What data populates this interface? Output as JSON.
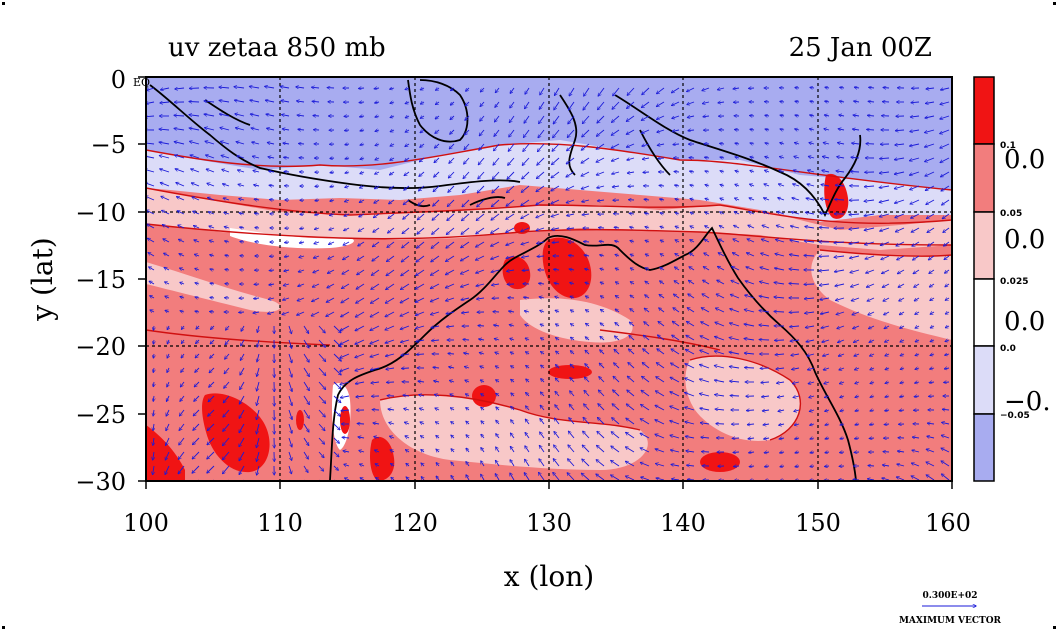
{
  "title": {
    "left": "uv zetaa 850 mb",
    "right": "25 Jan 00Z"
  },
  "axes": {
    "xlabel": "x (lon)",
    "ylabel": "y (lat)",
    "xticks": [
      "100",
      "110",
      "120",
      "130",
      "140",
      "150",
      "160"
    ],
    "yticks": [
      "0",
      "−5",
      "−10",
      "−15",
      "−20",
      "−25",
      "−30"
    ],
    "xlim": [
      100,
      160
    ],
    "ylim": [
      -30,
      0
    ],
    "corner_label": "EQ"
  },
  "colorbar": {
    "levels": [
      {
        "color": "#f01414",
        "small": "0.1",
        "big": ""
      },
      {
        "color": "#f27d7d",
        "small": "0.05",
        "big": "0.0"
      },
      {
        "color": "#f8c8c8",
        "small": "0.025",
        "big": "0.0"
      },
      {
        "color": "#ffffff",
        "small": "0.0",
        "big": "0.0"
      },
      {
        "color": "#dcdcf8",
        "small": "−0.05",
        "big": "−0."
      },
      {
        "color": "#a8acf0",
        "small": "",
        "big": ""
      }
    ]
  },
  "legend": {
    "value": "0.300E+02",
    "label": "MAXIMUM VECTOR"
  },
  "colors": {
    "strong_pos": "#f01414",
    "pos": "#f27d7d",
    "weak_pos": "#f8c8c8",
    "weak_neg": "#dcdcf8",
    "neg": "#a8acf0",
    "vector": "#1a1ad8",
    "coast": "#000000"
  }
}
